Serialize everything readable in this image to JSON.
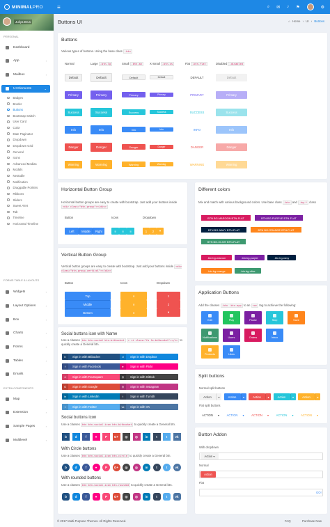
{
  "brand": {
    "bold": "MINIMAL",
    "light": "PRO"
  },
  "header": {
    "title": "Buttons UI",
    "breadcrumb": [
      "Home",
      "UI",
      "Buttons"
    ]
  },
  "user": {
    "name": "Juliya Brus"
  },
  "sidebar": {
    "sections": [
      "PERSONAL",
      "FORMS TABLE & LAYOUTS",
      "EXTRA COMPONENTS"
    ],
    "items": [
      {
        "label": "Dashboard"
      },
      {
        "label": "App"
      },
      {
        "label": "Mailbox"
      },
      {
        "label": "UI Elements"
      },
      {
        "label": "Widgets"
      },
      {
        "label": "Layout Options"
      },
      {
        "label": "Box"
      },
      {
        "label": "Charts"
      },
      {
        "label": "Forms"
      },
      {
        "label": "Tables"
      },
      {
        "label": "Emails"
      },
      {
        "label": "Map"
      },
      {
        "label": "Extension"
      },
      {
        "label": "Sample Pages"
      },
      {
        "label": "Multilevel"
      }
    ],
    "submenu": [
      "Badges",
      "Border",
      "Buttons",
      "Bootstrap Switch",
      "User Card",
      "Color",
      "Date Paginator",
      "Dropdown",
      "Dropdown Grid",
      "General",
      "Icons",
      "Advanced Medias",
      "Modals",
      "Nestable",
      "Notification",
      "Draggable Portlets",
      "Ribbons",
      "Sliders",
      "Sweet Alert",
      "Tab",
      "Timeline",
      "Horizontal Timeline"
    ]
  },
  "buttons_card": {
    "title": "Buttons",
    "desc": "Various types of buttons. Using the base class",
    "code": ".btn",
    "columns": [
      {
        "name": "Normal"
      },
      {
        "name": "Large",
        "code": ".btn-lg"
      },
      {
        "name": "Small",
        "code": ".btn-sm"
      },
      {
        "name": "X-Small",
        "code": ".btn-xs"
      },
      {
        "name": "Flat",
        "code": ".btn-flat"
      },
      {
        "name": "Disabled",
        "code": ".disabled"
      }
    ],
    "rows": [
      "Default",
      "Primary",
      "Success",
      "Info",
      "Danger",
      "Warning"
    ]
  },
  "hgroup": {
    "title": "Horizontal Button Group",
    "desc": "Horizontal button groups are easy to create with bootstrap. Just add your buttons inside",
    "code": "<div class=\"btn-group\"></div>",
    "labels": [
      "Button",
      "Icons",
      "Dropdown"
    ],
    "buttons": [
      "Left",
      "Middle",
      "Right"
    ],
    "dd": "2"
  },
  "vgroup": {
    "title": "Vertical Button Group",
    "desc": "Vertical button groups are easy to create with bootstrap. Just add your buttons inside",
    "code": "<div class=\"btn-group-vertical\"></div>",
    "labels": [
      "Button",
      "Icons",
      "Dropdown"
    ],
    "buttons": [
      "Top",
      "Middle",
      "Bottom"
    ]
  },
  "colors": {
    "title": "Different colors",
    "desc": "Mix and match with various background colors. Use base class",
    "code1": ".btn",
    "desc_and": "and",
    "code2": ".bg-*",
    "desc2": "class",
    "buttons": [
      "BTN BG-MAROON BTN-FLAT",
      "BTN BG-PURPLE BTN-FLAT",
      "BTN BG-NAVY BTN-FLAT",
      "BTN BG-ORANGE BTN-FLAT",
      "BTN BG-OLIVE BTN-FLAT"
    ],
    "buttons2": [
      ".btn.bg-maroon",
      ".btn.bg-purple",
      ".btn.bg-navy",
      ".btn.bg-orange",
      ".btn.bg-olive"
    ]
  },
  "social": {
    "title": "Social buttons icon with Name",
    "desc_a": "Use a classes",
    "code": "btn btn-social btn-bitbucket",
    "desc_b": "> <i class=\"fa fa-bitbucket\"></i>",
    "desc_c": "to quickly create a General btn.",
    "buttons": [
      "Sign in with Bitbucket",
      "Sign in with Dropbox",
      "Sign in with Facebook",
      "Sign in with Flickr",
      "Sign in with Foursquare",
      "Sign in with Github",
      "Sign in with Google",
      "Sign in with Instagram",
      "Sign in with LinkedIn",
      "Sign in with Tumblr",
      "Sign in with Twitter",
      "Sign in with VK"
    ],
    "icon_title": "Social buttons icon",
    "icon_desc_a": "Use a classes",
    "icon_code": "btn btn-social-icon btn-bitbucket",
    "icon_desc_b": "to quickly create a General btn.",
    "circle_title": "With Circle buttons",
    "circle_code": "btn btn-social-icon btn-circle",
    "round_title": "With rounded buttons",
    "round_code": "btn btn-social-icon btn-rounded",
    "icons": [
      "b",
      "d",
      "f",
      "●",
      "P",
      "G+",
      "◎",
      "in",
      "t",
      "t",
      "v"
    ]
  },
  "app": {
    "title": "Application Buttons",
    "desc_a": "Add the classes",
    "code1": ".btn .btn-app",
    "desc_b": "to an",
    "code2": "<a>",
    "desc_c": "tag to achieve the following:",
    "buttons": [
      "Edit",
      "Play",
      "Pause",
      "Stop",
      "Save",
      "Notifications",
      "Users",
      "Orders",
      "Inbox",
      "Products",
      "Likes"
    ]
  },
  "split": {
    "title": "Split buttons",
    "normal": "Normal split buttons",
    "flat": "Flat split buttons",
    "action": "Action",
    "flat_action": "ACTION"
  },
  "addon": {
    "title": "Button Addon",
    "with_dd": "With dropdown",
    "action": "Action",
    "normal": "Normal",
    "flat": "Flat",
    "go": "GO!"
  },
  "footer": {
    "copyright": "© 2017 Multi-Purpose Themes. All Rights Reserved.",
    "faq": "FAQ",
    "purchase": "Purchase Now"
  },
  "colors_palette": {
    "primary": "#7460ee",
    "success": "#26c6da",
    "info": "#398bf7",
    "danger": "#ef5350",
    "warning": "#ffb22b",
    "brand": "#1e88e5"
  }
}
